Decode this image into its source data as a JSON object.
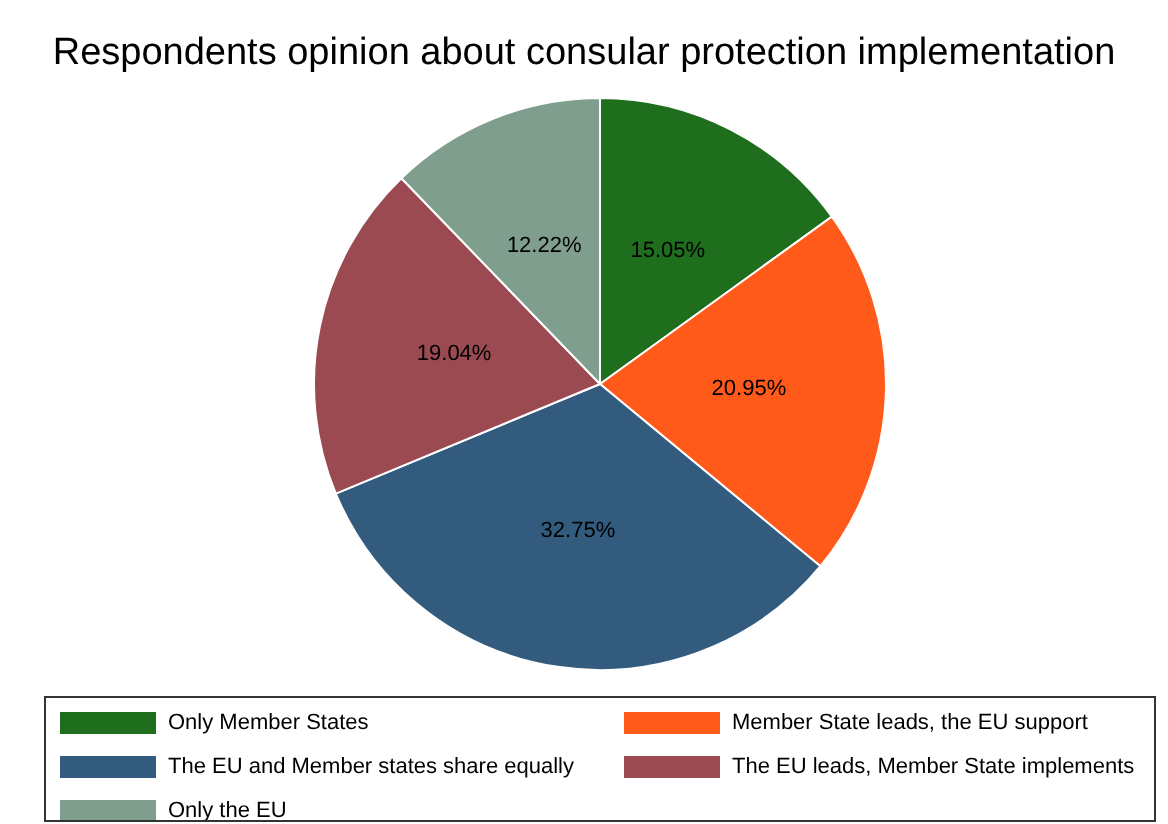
{
  "chart_data": {
    "type": "pie",
    "title": "Respondents opinion about consular protection implementation",
    "categories": [
      "Only Member States",
      "Member State leads, the EU support",
      "The EU and Member states share equally",
      "The EU leads, Member State implements",
      "Only the EU"
    ],
    "values": [
      15.05,
      20.95,
      32.75,
      19.04,
      12.22
    ],
    "value_labels": [
      "15.05%",
      "20.95%",
      "32.75%",
      "19.04%",
      "12.22%"
    ],
    "colors": [
      "#1e6e1e",
      "#ff5a1a",
      "#335b7e",
      "#9b4a52",
      "#7f9e8e"
    ],
    "legend": "bottom"
  }
}
